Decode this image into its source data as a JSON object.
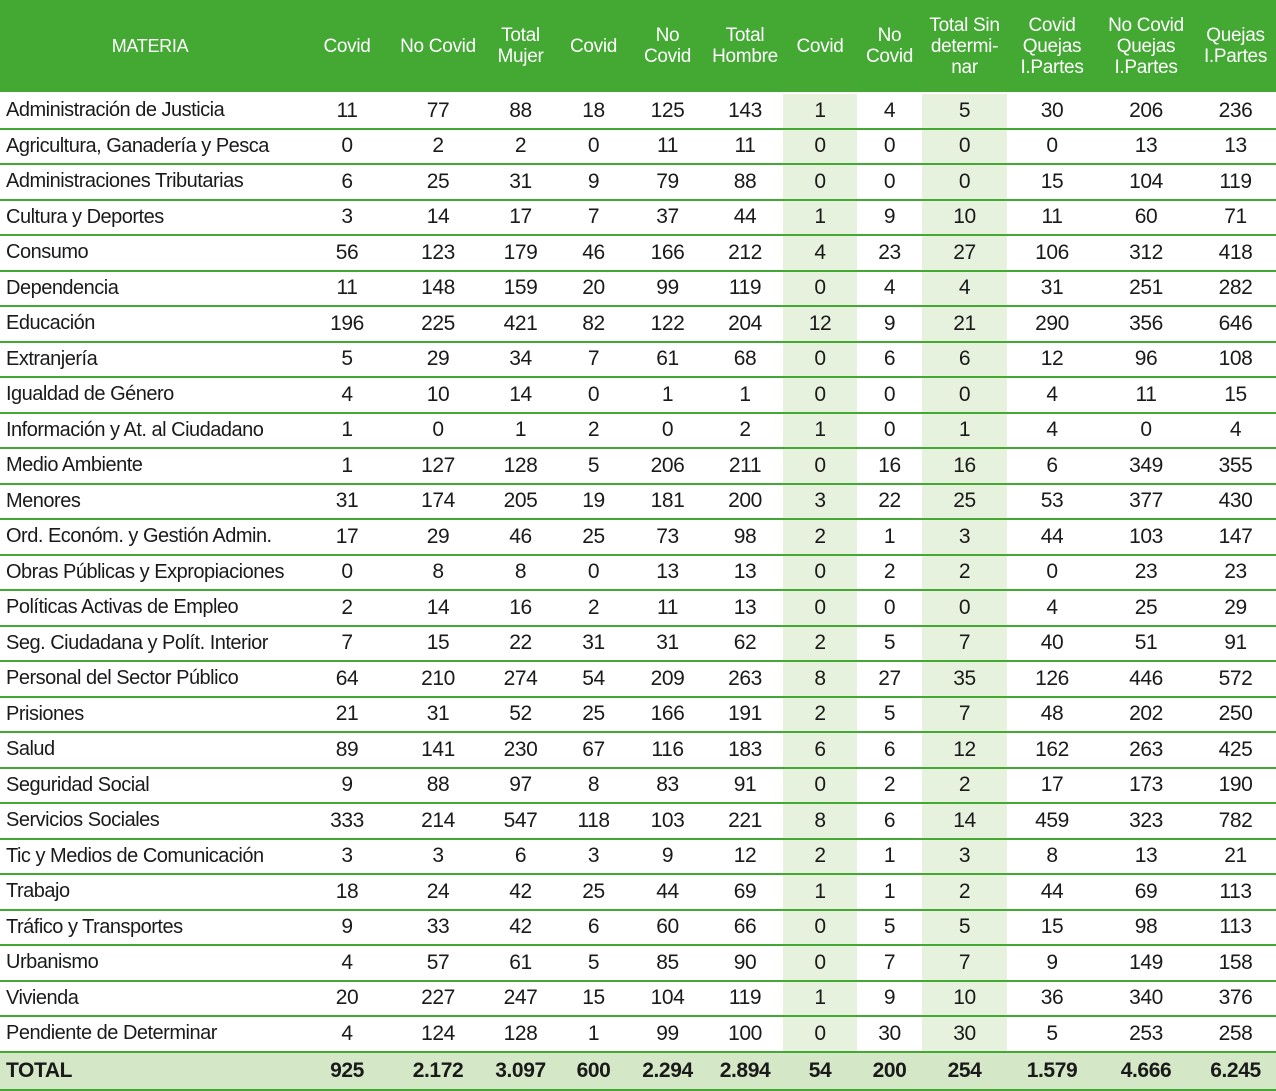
{
  "headers": [
    "MATERIA",
    "Covid",
    "No Covid",
    "Total\nMujer",
    "Covid",
    "No\nCovid",
    "Total\nHombre",
    "Covid",
    "No\nCovid",
    "Total Sin\ndetermi-\nnar",
    "Covid\nQuejas\nI.Partes",
    "No Covid\nQuejas\nI.Partes",
    "Quejas\nI.Partes"
  ],
  "rows": [
    {
      "materia": "Administración de Justicia",
      "values": [
        "11",
        "77",
        "88",
        "18",
        "125",
        "143",
        "1",
        "4",
        "5",
        "30",
        "206",
        "236"
      ]
    },
    {
      "materia": "Agricultura, Ganadería y Pesca",
      "values": [
        "0",
        "2",
        "2",
        "0",
        "11",
        "11",
        "0",
        "0",
        "0",
        "0",
        "13",
        "13"
      ]
    },
    {
      "materia": "Administraciones Tributarias",
      "values": [
        "6",
        "25",
        "31",
        "9",
        "79",
        "88",
        "0",
        "0",
        "0",
        "15",
        "104",
        "119"
      ]
    },
    {
      "materia": "Cultura y Deportes",
      "values": [
        "3",
        "14",
        "17",
        "7",
        "37",
        "44",
        "1",
        "9",
        "10",
        "11",
        "60",
        "71"
      ]
    },
    {
      "materia": "Consumo",
      "values": [
        "56",
        "123",
        "179",
        "46",
        "166",
        "212",
        "4",
        "23",
        "27",
        "106",
        "312",
        "418"
      ]
    },
    {
      "materia": "Dependencia",
      "values": [
        "11",
        "148",
        "159",
        "20",
        "99",
        "119",
        "0",
        "4",
        "4",
        "31",
        "251",
        "282"
      ]
    },
    {
      "materia": "Educación",
      "values": [
        "196",
        "225",
        "421",
        "82",
        "122",
        "204",
        "12",
        "9",
        "21",
        "290",
        "356",
        "646"
      ]
    },
    {
      "materia": "Extranjería",
      "values": [
        "5",
        "29",
        "34",
        "7",
        "61",
        "68",
        "0",
        "6",
        "6",
        "12",
        "96",
        "108"
      ]
    },
    {
      "materia": "Igualdad de Género",
      "values": [
        "4",
        "10",
        "14",
        "0",
        "1",
        "1",
        "0",
        "0",
        "0",
        "4",
        "11",
        "15"
      ]
    },
    {
      "materia": "Información y At. al Ciudadano",
      "values": [
        "1",
        "0",
        "1",
        "2",
        "0",
        "2",
        "1",
        "0",
        "1",
        "4",
        "0",
        "4"
      ]
    },
    {
      "materia": "Medio Ambiente",
      "values": [
        "1",
        "127",
        "128",
        "5",
        "206",
        "211",
        "0",
        "16",
        "16",
        "6",
        "349",
        "355"
      ]
    },
    {
      "materia": "Menores",
      "values": [
        "31",
        "174",
        "205",
        "19",
        "181",
        "200",
        "3",
        "22",
        "25",
        "53",
        "377",
        "430"
      ]
    },
    {
      "materia": "Ord. Económ. y Gestión Admin.",
      "values": [
        "17",
        "29",
        "46",
        "25",
        "73",
        "98",
        "2",
        "1",
        "3",
        "44",
        "103",
        "147"
      ]
    },
    {
      "materia": "Obras Públicas y Expropiaciones",
      "values": [
        "0",
        "8",
        "8",
        "0",
        "13",
        "13",
        "0",
        "2",
        "2",
        "0",
        "23",
        "23"
      ]
    },
    {
      "materia": "Políticas Activas de Empleo",
      "values": [
        "2",
        "14",
        "16",
        "2",
        "11",
        "13",
        "0",
        "0",
        "0",
        "4",
        "25",
        "29"
      ]
    },
    {
      "materia": "Seg. Ciudadana y Polít. Interior",
      "values": [
        "7",
        "15",
        "22",
        "31",
        "31",
        "62",
        "2",
        "5",
        "7",
        "40",
        "51",
        "91"
      ]
    },
    {
      "materia": "Personal del Sector Público",
      "values": [
        "64",
        "210",
        "274",
        "54",
        "209",
        "263",
        "8",
        "27",
        "35",
        "126",
        "446",
        "572"
      ]
    },
    {
      "materia": "Prisiones",
      "values": [
        "21",
        "31",
        "52",
        "25",
        "166",
        "191",
        "2",
        "5",
        "7",
        "48",
        "202",
        "250"
      ]
    },
    {
      "materia": "Salud",
      "values": [
        "89",
        "141",
        "230",
        "67",
        "116",
        "183",
        "6",
        "6",
        "12",
        "162",
        "263",
        "425"
      ]
    },
    {
      "materia": "Seguridad Social",
      "values": [
        "9",
        "88",
        "97",
        "8",
        "83",
        "91",
        "0",
        "2",
        "2",
        "17",
        "173",
        "190"
      ]
    },
    {
      "materia": "Servicios Sociales",
      "values": [
        "333",
        "214",
        "547",
        "118",
        "103",
        "221",
        "8",
        "6",
        "14",
        "459",
        "323",
        "782"
      ]
    },
    {
      "materia": "Tic y Medios de Comunicación",
      "values": [
        "3",
        "3",
        "6",
        "3",
        "9",
        "12",
        "2",
        "1",
        "3",
        "8",
        "13",
        "21"
      ]
    },
    {
      "materia": "Trabajo",
      "values": [
        "18",
        "24",
        "42",
        "25",
        "44",
        "69",
        "1",
        "1",
        "2",
        "44",
        "69",
        "113"
      ]
    },
    {
      "materia": "Tráfico y Transportes",
      "values": [
        "9",
        "33",
        "42",
        "6",
        "60",
        "66",
        "0",
        "5",
        "5",
        "15",
        "98",
        "113"
      ]
    },
    {
      "materia": "Urbanismo",
      "values": [
        "4",
        "57",
        "61",
        "5",
        "85",
        "90",
        "0",
        "7",
        "7",
        "9",
        "149",
        "158"
      ]
    },
    {
      "materia": "Vivienda",
      "values": [
        "20",
        "227",
        "247",
        "15",
        "104",
        "119",
        "1",
        "9",
        "10",
        "36",
        "340",
        "376"
      ]
    },
    {
      "materia": "Pendiente de Determinar",
      "values": [
        "4",
        "124",
        "128",
        "1",
        "99",
        "100",
        "0",
        "30",
        "30",
        "5",
        "253",
        "258"
      ]
    }
  ],
  "total": {
    "label": "TOTAL",
    "values": [
      "925",
      "2.172",
      "3.097",
      "600",
      "2.294",
      "2.894",
      "54",
      "200",
      "254",
      "1.579",
      "4.666",
      "6.245"
    ]
  },
  "colors": {
    "header_bg": "#43a933",
    "row_border": "#43a933",
    "tinted_column": "#e6f1de",
    "total_bg": "#d4e7c6"
  }
}
